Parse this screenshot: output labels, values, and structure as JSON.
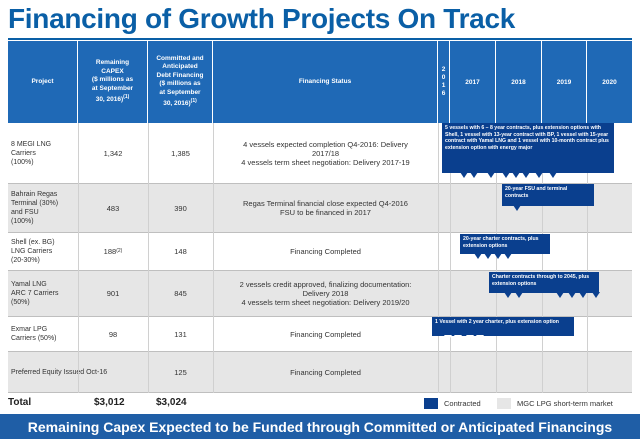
{
  "title": "Financing of Growth Projects On Track",
  "headers": {
    "project": "Project",
    "remaining": "Remaining\nCAPEX\n($ millions as\nat September\n30, 2016)",
    "remaining_sup": "(1)",
    "committed": "Committed and\nAnticipated\nDebt Financing\n($ millions as\nat September\n30, 2016)",
    "committed_sup": "(1)",
    "status": "Financing Status",
    "year_2016": [
      "2",
      "0",
      "1",
      "6"
    ],
    "years": [
      "2017",
      "2018",
      "2019",
      "2020"
    ]
  },
  "rows": [
    {
      "project": "8 MEGI LNG\nCarriers\n(100%)",
      "remaining": "1,342",
      "committed": "1,385",
      "status": "4 vessels expected completion Q4-2016: Delivery\n2017/18\n4 vessels term sheet negotiation: Delivery 2017-19"
    },
    {
      "project": "Bahrain Regas\nTerminal (30%)\nand FSU\n(100%)",
      "remaining": "483",
      "committed": "390",
      "status": "Regas Terminal financial close expected Q4-2016\nFSU to be financed in 2017"
    },
    {
      "project": "Shell (ex. BG)\nLNG Carriers\n(20-30%)",
      "remaining": "188",
      "remaining_sup": "(2)",
      "committed": "148",
      "status": "Financing Completed"
    },
    {
      "project": "Yamal LNG\nARC 7 Carriers\n(50%)",
      "remaining": "901",
      "committed": "845",
      "status": "2 vessels credit approved, finalizing documentation:\nDelivery 2018\n4 vessels term sheet negotiation: Delivery 2019/20"
    },
    {
      "project": "Exmar LPG\nCarriers (50%)",
      "remaining": "98",
      "committed": "131",
      "status": "Financing Completed"
    },
    {
      "project": "Preferred Equity Issued Oct-16",
      "remaining": "",
      "committed": "125",
      "status": "Financing Completed"
    }
  ],
  "bars": [
    "5 vessels with 6 – 8 year contracts, plus extension options with Shell, 1 vessel with 13-year contract with BP, 1 vessel with 15-year contract with Yamal LNG and 1 vessel with 10-month contract plus extension option with energy major",
    "20-year FSU and terminal contracts",
    "20-year charter contracts, plus extension options",
    "Charter contracts through to 2045, plus extension options",
    "1 Vessel with 2 year charter,  plus extension option"
  ],
  "totals": {
    "label": "Total",
    "remaining": "$3,012",
    "committed": "$3,024"
  },
  "legend": {
    "contracted": "Contracted",
    "short_term": "MGC LPG short-term market",
    "contracted_color": "#0a3f8e",
    "short_term_color": "#e6e6e6"
  },
  "footer": "Remaining Capex Expected to be Funded through Committed or Anticipated Financings"
}
